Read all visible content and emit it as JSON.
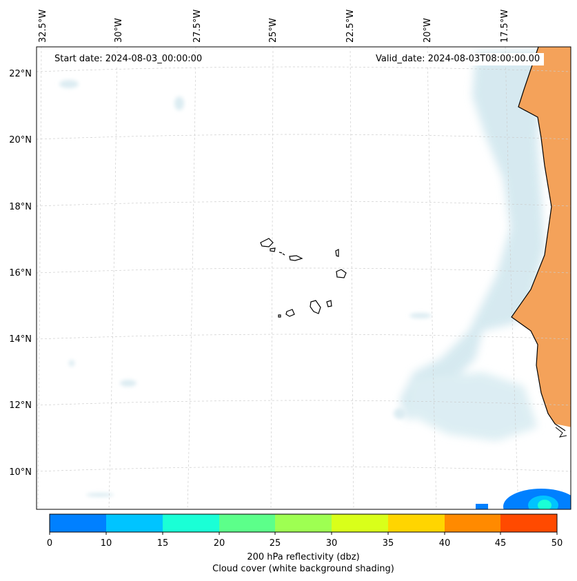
{
  "header": {
    "start_date": "Start date: 2024-08-03_00:00:00",
    "valid_date": "Valid_date: 2024-08-03T08:00:00.00"
  },
  "map": {
    "lon_labels": [
      "32.5°W",
      "30°W",
      "27.5°W",
      "25°W",
      "22.5°W",
      "20°W",
      "17.5°W"
    ],
    "lat_labels": [
      "22°N",
      "20°N",
      "18°N",
      "16°N",
      "14°N",
      "12°N",
      "10°N"
    ],
    "features": [
      "Cape Verde islands",
      "West African coastline (Mauritania, Senegal, Gambia, Guinea-Bissau)"
    ],
    "colors": {
      "land": "#f4a25a",
      "cloud": "#cfe6ee",
      "gridline": "#cccccc",
      "coast": "#000000"
    }
  },
  "colorbar": {
    "ticks": [
      "0",
      "10",
      "15",
      "20",
      "25",
      "30",
      "35",
      "40",
      "45",
      "50"
    ],
    "colors": [
      "#0080ff",
      "#00c4ff",
      "#1affd6",
      "#5cff8a",
      "#9eff52",
      "#d9ff1a",
      "#ffd500",
      "#ff8a00",
      "#ff4a00"
    ],
    "label_line1": "200 hPa reflectivity (dbz)",
    "label_line2": "Cloud cover (white background shading)"
  }
}
